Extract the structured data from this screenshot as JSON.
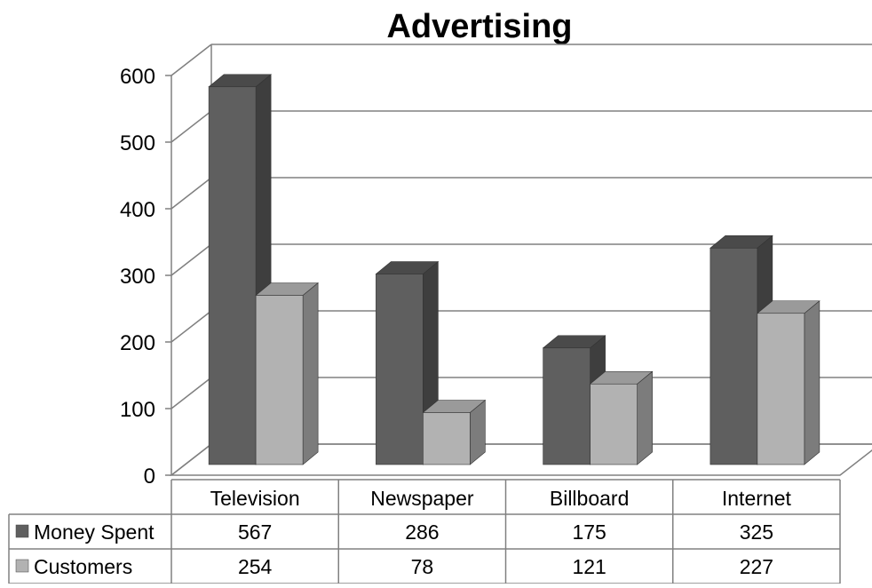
{
  "chart_data": {
    "type": "bar",
    "title": "Advertising",
    "categories": [
      "Television",
      "Newspaper",
      "Billboard",
      "Internet"
    ],
    "series": [
      {
        "name": "Money Spent",
        "values": [
          567,
          286,
          175,
          325
        ],
        "color": "#5f5f5f",
        "side_color": "#3e3e3e",
        "top_color": "#4a4a4a"
      },
      {
        "name": "Customers",
        "values": [
          254,
          78,
          121,
          227
        ],
        "color": "#b2b2b2",
        "side_color": "#7c7c7c",
        "top_color": "#9a9a9a"
      }
    ],
    "ylim": [
      0,
      600
    ],
    "yticks": [
      0,
      100,
      200,
      300,
      400,
      500,
      600
    ],
    "grid": true,
    "legend": "data-table-left",
    "data_table": true,
    "xlabel": "",
    "ylabel": ""
  }
}
